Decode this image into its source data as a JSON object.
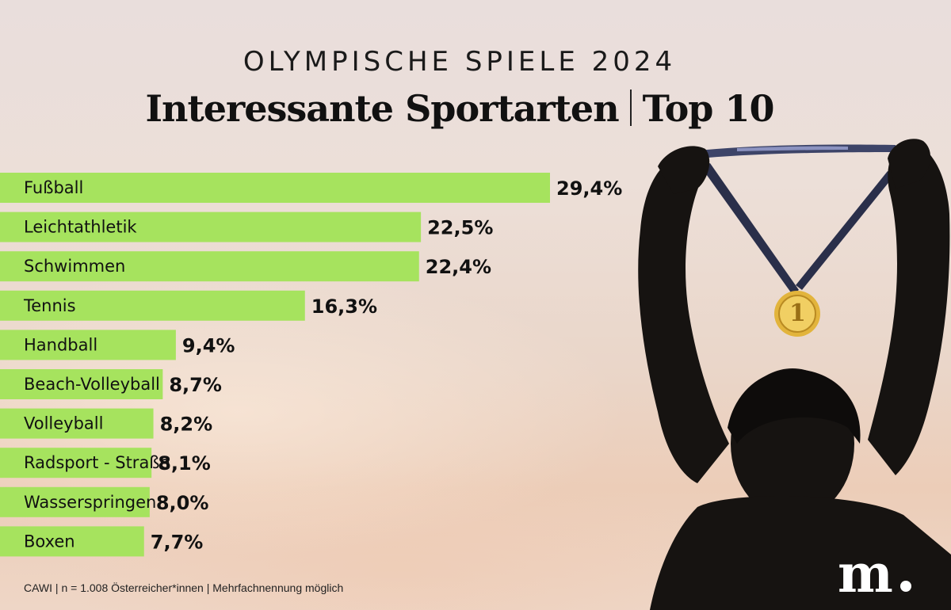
{
  "header": {
    "kicker": "OLYMPISCHE SPIELE 2024",
    "title_main": "Interessante Sportarten",
    "title_suffix": "Top 10"
  },
  "chart_data": {
    "type": "bar",
    "orientation": "horizontal",
    "categories": [
      "Fußball",
      "Leichtathletik",
      "Schwimmen",
      "Tennis",
      "Handball",
      "Beach-Volleyball",
      "Volleyball",
      "Radsport - Straße",
      "Wasserspringen",
      "Boxen"
    ],
    "values": [
      29.4,
      22.5,
      22.4,
      16.3,
      9.4,
      8.7,
      8.2,
      8.1,
      8.0,
      7.7
    ],
    "value_labels": [
      "29,4%",
      "22,5%",
      "22,4%",
      "16,3%",
      "9,4%",
      "8,7%",
      "8,2%",
      "8,1%",
      "8,0%",
      "7,7%"
    ],
    "bar_color": "#a6e35e",
    "title": "Interessante Sportarten | Top 10"
  },
  "footnote": "CAWI | n = 1.008 Österreicher*innen | Mehrfachnennung möglich",
  "logo": "m",
  "medal_text": "1"
}
